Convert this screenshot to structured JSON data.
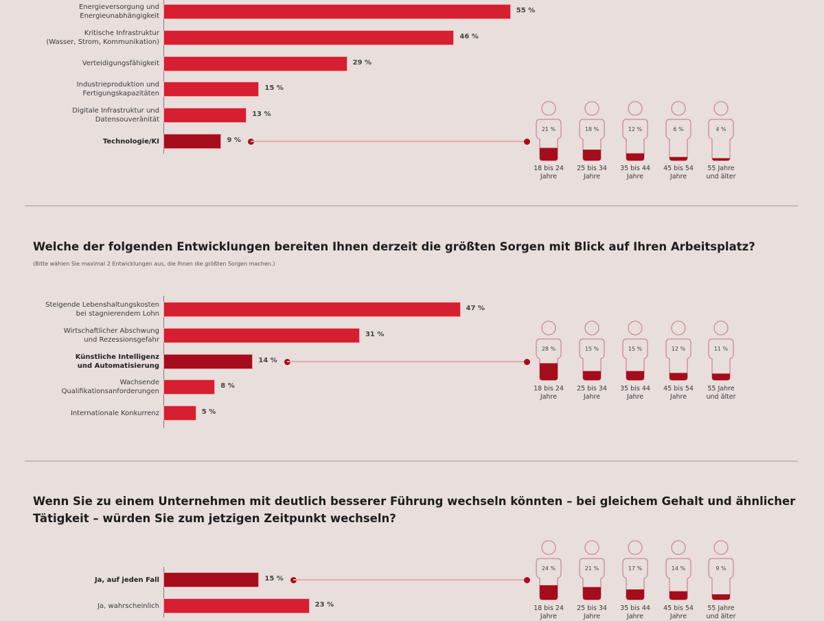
{
  "colors": {
    "background": "#e8dedc",
    "bar": "#d61f30",
    "bar_highlight": "#a50d1c",
    "connector": "#e7a7ab",
    "person_outline": "#c98b90"
  },
  "chart_data": [
    {
      "type": "bar",
      "orientation": "horizontal",
      "title": "",
      "categories": [
        "Energieversorgung und Energieunabhängigkeit",
        "Kritische Infrastruktur (Wasser, Strom, Kommunikation)",
        "Verteidigungsfähigkeit",
        "Industrieproduktion und Fertigungskapazitäten",
        "Digitale Infrastruktur und Datensouveränität",
        "Technologie/KI"
      ],
      "category_lines": [
        [
          "Energieversorgung und",
          "Energieunabhängigkeit"
        ],
        [
          "Kritische Infrastruktur",
          "(Wasser, Strom, Kommunikation)"
        ],
        [
          "Verteidigungsfähigkeit"
        ],
        [
          "Industrieproduktion und",
          "Fertigungskapazitäten"
        ],
        [
          "Digitale Infrastruktur und",
          "Datensouveränität"
        ],
        [
          "Technologie/KI"
        ]
      ],
      "values": [
        55,
        46,
        29,
        15,
        13,
        9
      ],
      "value_labels": [
        "55 %",
        "46 %",
        "29 %",
        "15 %",
        "13 %",
        "9 %"
      ],
      "highlight_index": 5,
      "unit": "%",
      "age_breakdown": {
        "groups": [
          "18 bis 24 Jahre",
          "25 bis 34 Jahre",
          "35 bis 44 Jahre",
          "45 bis 54 Jahre",
          "55 Jahre und älter"
        ],
        "group_lines": [
          [
            "18 bis 24",
            "Jahre"
          ],
          [
            "25 bis 34",
            "Jahre"
          ],
          [
            "35 bis 44",
            "Jahre"
          ],
          [
            "45 bis 54",
            "Jahre"
          ],
          [
            "55 Jahre",
            "und älter"
          ]
        ],
        "values": [
          21,
          18,
          12,
          6,
          4
        ],
        "value_labels": [
          "21 %",
          "18 %",
          "12 %",
          "6 %",
          "4 %"
        ]
      }
    },
    {
      "type": "bar",
      "orientation": "horizontal",
      "title": "Welche der folgenden Entwicklungen bereiten Ihnen derzeit die größten Sorgen mit Blick auf Ihren Arbeitsplatz?",
      "subtitle": "(Bitte wählen Sie maximal 2 Entwicklungen aus, die Ihnen die größten Sorgen machen.)",
      "categories": [
        "Steigende Lebenshaltungskosten bei stagnierendem Lohn",
        "Wirtschaftlicher Abschwung und Rezessionsgefahr",
        "Künstliche Intelligenz und Automatisierung",
        "Wachsende Qualifikationsanforderungen",
        "Internationale Konkurrenz"
      ],
      "category_lines": [
        [
          "Steigende Lebenshaltungskosten",
          "bei stagnierendem Lohn"
        ],
        [
          "Wirtschaftlicher Abschwung",
          "und Rezessionsgefahr"
        ],
        [
          "Künstliche Intelligenz",
          "und Automatisierung"
        ],
        [
          "Wachsende",
          "Qualifikationsanforderungen"
        ],
        [
          "Internationale Konkurrenz"
        ]
      ],
      "values": [
        47,
        31,
        14,
        8,
        5
      ],
      "value_labels": [
        "47 %",
        "31 %",
        "14 %",
        "8 %",
        "5 %"
      ],
      "highlight_index": 2,
      "unit": "%",
      "age_breakdown": {
        "groups": [
          "18 bis 24 Jahre",
          "25 bis 34 Jahre",
          "35 bis 44 Jahre",
          "45 bis 54 Jahre",
          "55 Jahre und älter"
        ],
        "group_lines": [
          [
            "18 bis 24",
            "Jahre"
          ],
          [
            "25 bis 34",
            "Jahre"
          ],
          [
            "35 bis 44",
            "Jahre"
          ],
          [
            "45 bis 54",
            "Jahre"
          ],
          [
            "55 Jahre",
            "und älter"
          ]
        ],
        "values": [
          28,
          15,
          15,
          12,
          11
        ],
        "value_labels": [
          "28 %",
          "15 %",
          "15 %",
          "12 %",
          "11 %"
        ]
      }
    },
    {
      "type": "bar",
      "orientation": "horizontal",
      "title": "Wenn Sie zu einem Unternehmen mit deutlich besserer Führung wechseln könnten – bei gleichem Gehalt und ähnlicher Tätigkeit – würden Sie zum jetzigen Zeitpunkt wechseln?",
      "title_lines": [
        "Wenn Sie zu einem Unternehmen mit deutlich besserer Führung wechseln könnten – bei gleichem Gehalt und ähnlicher",
        "Tätigkeit – würden Sie zum jetzigen Zeitpunkt wechseln?"
      ],
      "categories": [
        "Ja, auf jeden Fall",
        "Ja, wahrscheinlich"
      ],
      "category_lines": [
        [
          "Ja, auf jeden Fall"
        ],
        [
          "Ja, wahrscheinlich"
        ]
      ],
      "values": [
        15,
        23
      ],
      "value_labels": [
        "15 %",
        "23 %"
      ],
      "highlight_index": 0,
      "unit": "%",
      "age_breakdown": {
        "groups": [
          "18 bis 24 Jahre",
          "25 bis 34 Jahre",
          "35 bis 44 Jahre",
          "45 bis 54 Jahre",
          "55 Jahre und älter"
        ],
        "group_lines": [
          [
            "18 bis 24",
            "Jahre"
          ],
          [
            "25 bis 34",
            "Jahre"
          ],
          [
            "35 bis 44",
            "Jahre"
          ],
          [
            "45 bis 54",
            "Jahre"
          ],
          [
            "55 Jahre",
            "und älter"
          ]
        ],
        "values": [
          24,
          21,
          17,
          14,
          9
        ],
        "value_labels": [
          "24 %",
          "21 %",
          "17 %",
          "14 %",
          "9 %"
        ]
      }
    }
  ]
}
